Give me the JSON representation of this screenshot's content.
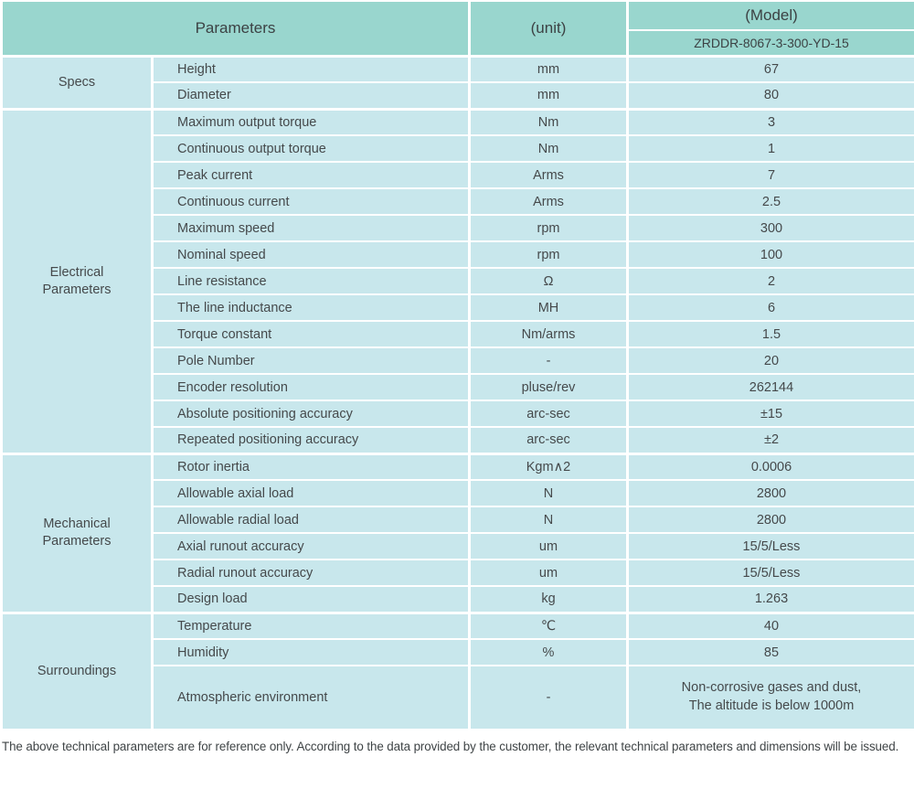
{
  "header": {
    "parameters_label": "Parameters",
    "unit_label": "(unit)",
    "model_label": "(Model)",
    "model_value": "ZRDDR-8067-3-300-YD-15"
  },
  "sections": [
    {
      "id": "specs",
      "label": "Specs",
      "rows": [
        {
          "param": "Height",
          "unit": "mm",
          "value": "67"
        },
        {
          "param": "Diameter",
          "unit": "mm",
          "value": "80"
        }
      ]
    },
    {
      "id": "electrical-parameters",
      "label": "Electrical\nParameters",
      "rows": [
        {
          "param": "Maximum output torque",
          "unit": "Nm",
          "value": "3"
        },
        {
          "param": "Continuous output torque",
          "unit": "Nm",
          "value": "1"
        },
        {
          "param": "Peak current",
          "unit": "Arms",
          "value": "7"
        },
        {
          "param": "Continuous current",
          "unit": "Arms",
          "value": "2.5"
        },
        {
          "param": "Maximum speed",
          "unit": "rpm",
          "value": "300"
        },
        {
          "param": "Nominal speed",
          "unit": "rpm",
          "value": "100"
        },
        {
          "param": "Line resistance",
          "unit": "Ω",
          "value": "2"
        },
        {
          "param": "The line inductance",
          "unit": "MH",
          "value": "6"
        },
        {
          "param": "Torque constant",
          "unit": "Nm/arms",
          "value": "1.5"
        },
        {
          "param": "Pole Number",
          "unit": "-",
          "value": "20"
        },
        {
          "param": "Encoder resolution",
          "unit": "pluse/rev",
          "value": "262144"
        },
        {
          "param": "Absolute positioning accuracy",
          "unit": "arc-sec",
          "value": "±15"
        },
        {
          "param": "Repeated positioning accuracy",
          "unit": "arc-sec",
          "value": "±2"
        }
      ]
    },
    {
      "id": "mechanical-parameters",
      "label": "Mechanical\nParameters",
      "rows": [
        {
          "param": "Rotor inertia",
          "unit": "Kgm∧2",
          "value": "0.0006"
        },
        {
          "param": "Allowable axial load",
          "unit": "N",
          "value": "2800"
        },
        {
          "param": "Allowable radial load",
          "unit": "N",
          "value": "2800"
        },
        {
          "param": "Axial runout accuracy",
          "unit": "um",
          "value": "15/5/Less"
        },
        {
          "param": "Radial runout accuracy",
          "unit": "um",
          "value": "15/5/Less"
        },
        {
          "param": "Design load",
          "unit": "kg",
          "value": "1.263"
        }
      ]
    },
    {
      "id": "surroundings",
      "label": "Surroundings",
      "rows": [
        {
          "param": "Temperature",
          "unit": "℃",
          "value": "40"
        },
        {
          "param": "Humidity",
          "unit": "%",
          "value": "85"
        },
        {
          "param": "Atmospheric environment",
          "unit": "-",
          "value": "Non-corrosive gases and dust,\nThe altitude is below 1000m",
          "tall": true
        }
      ]
    }
  ],
  "footer": {
    "note": "The above technical parameters are for reference only. According to the data provided by the customer, the relevant technical parameters and dimensions will be issued."
  },
  "colors": {
    "header_bg": "#99d6ce",
    "body_bg": "#c8e7ec",
    "border": "#ffffff",
    "text": "#45494b"
  }
}
